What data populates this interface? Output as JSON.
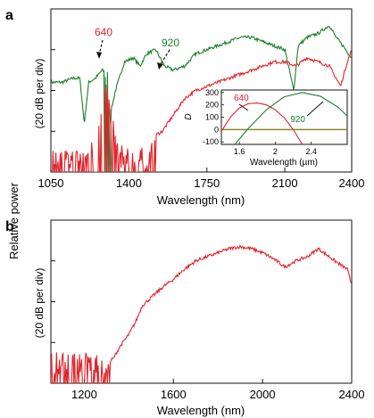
{
  "figure": {
    "ylabel_shared": "Relative power",
    "colors": {
      "red": "#e0242b",
      "green": "#1b7f2a",
      "black": "#111111"
    }
  },
  "chart_data": [
    {
      "panel": "a",
      "type": "line",
      "title": "",
      "xlabel": "Wavelength (nm)",
      "ylabel": "(20 dB per div)",
      "xlim": [
        1050,
        2400
      ],
      "xticks": [
        1050,
        1400,
        1750,
        2100,
        2400
      ],
      "y_divisions": 4,
      "grid": false,
      "annotations": [
        {
          "text": "640",
          "color": "#e0242b",
          "points_to_x": 1290
        },
        {
          "text": "920",
          "color": "#1b7f2a",
          "points_to_x": 1540
        }
      ],
      "series": [
        {
          "name": "640",
          "color": "#e0242b",
          "noise_region": [
            1050,
            1520
          ],
          "x": [
            1050,
            1100,
            1150,
            1200,
            1250,
            1280,
            1300,
            1320,
            1350,
            1400,
            1450,
            1500,
            1520,
            1550,
            1600,
            1650,
            1700,
            1750,
            1800,
            1850,
            1900,
            1950,
            2000,
            2050,
            2100,
            2150,
            2200,
            2250,
            2300,
            2350,
            2380,
            2400
          ],
          "y": [
            0.3,
            0.3,
            0.3,
            0.3,
            0.6,
            1.75,
            2.0,
            1.3,
            0.4,
            0.3,
            0.3,
            0.35,
            0.9,
            1.0,
            1.4,
            1.8,
            2.0,
            2.1,
            2.2,
            2.3,
            2.4,
            2.5,
            2.6,
            2.7,
            2.7,
            2.6,
            2.8,
            2.7,
            2.6,
            2.1,
            2.7,
            3.0
          ]
        },
        {
          "name": "920",
          "color": "#1b7f2a",
          "noise_region": [
            1290,
            1320
          ],
          "x": [
            1050,
            1100,
            1150,
            1180,
            1200,
            1220,
            1250,
            1280,
            1300,
            1320,
            1340,
            1380,
            1420,
            1450,
            1480,
            1520,
            1560,
            1600,
            1650,
            1700,
            1750,
            1800,
            1850,
            1900,
            1950,
            2000,
            2050,
            2100,
            2140,
            2160,
            2200,
            2250,
            2300,
            2330,
            2360,
            2400
          ],
          "y": [
            2.2,
            2.2,
            2.3,
            2.3,
            1.2,
            2.2,
            2.3,
            2.5,
            2.4,
            1.5,
            2.0,
            2.7,
            2.8,
            2.6,
            2.9,
            3.0,
            2.6,
            2.5,
            2.6,
            2.9,
            3.0,
            3.1,
            3.2,
            3.3,
            3.3,
            3.2,
            3.1,
            3.0,
            2.0,
            3.1,
            3.3,
            3.4,
            3.6,
            3.3,
            3.1,
            2.8
          ]
        }
      ],
      "inset": {
        "type": "line",
        "xlabel": "Wavelength (µm)",
        "ylabel": "D",
        "xlim": [
          1.4,
          2.8
        ],
        "ylim": [
          -120,
          320
        ],
        "xticks": [
          1.6,
          2.0,
          2.4
        ],
        "yticks": [
          -100,
          0,
          100,
          200,
          300
        ],
        "series": [
          {
            "name": "640",
            "color": "#e0242b",
            "x": [
              1.4,
              1.5,
              1.6,
              1.7,
              1.8,
              1.9,
              2.0,
              2.1,
              2.2,
              2.3
            ],
            "y": [
              -15,
              100,
              175,
              210,
              215,
              200,
              160,
              95,
              0,
              -120
            ]
          },
          {
            "name": "920",
            "color": "#1b7f2a",
            "x": [
              1.55,
              1.7,
              1.9,
              2.1,
              2.3,
              2.5,
              2.7,
              2.8
            ],
            "y": [
              -120,
              10,
              160,
              265,
              300,
              270,
              180,
              110
            ]
          }
        ],
        "zero_line": true
      }
    },
    {
      "panel": "b",
      "type": "line",
      "title": "",
      "xlabel": "Wavelength (nm)",
      "ylabel": "(20 dB per div)",
      "xlim": [
        1050,
        2400
      ],
      "xticks": [
        1200,
        1600,
        2000,
        2400
      ],
      "y_divisions": 4,
      "grid": false,
      "series": [
        {
          "color": "#e0242b",
          "noise_region": [
            1050,
            1320
          ],
          "x": [
            1050,
            1100,
            1150,
            1200,
            1250,
            1300,
            1330,
            1360,
            1400,
            1430,
            1460,
            1500,
            1550,
            1600,
            1650,
            1700,
            1750,
            1800,
            1850,
            1900,
            1950,
            2000,
            2050,
            2100,
            2150,
            2200,
            2250,
            2300,
            2350,
            2380,
            2400
          ],
          "y": [
            0.5,
            0.5,
            0.5,
            0.5,
            0.5,
            0.5,
            0.6,
            0.9,
            1.2,
            1.5,
            1.9,
            2.1,
            2.35,
            2.55,
            2.8,
            3.0,
            3.1,
            3.2,
            3.3,
            3.35,
            3.3,
            3.2,
            3.05,
            2.85,
            3.0,
            3.1,
            3.3,
            3.1,
            2.9,
            2.8,
            2.4
          ]
        }
      ]
    }
  ]
}
